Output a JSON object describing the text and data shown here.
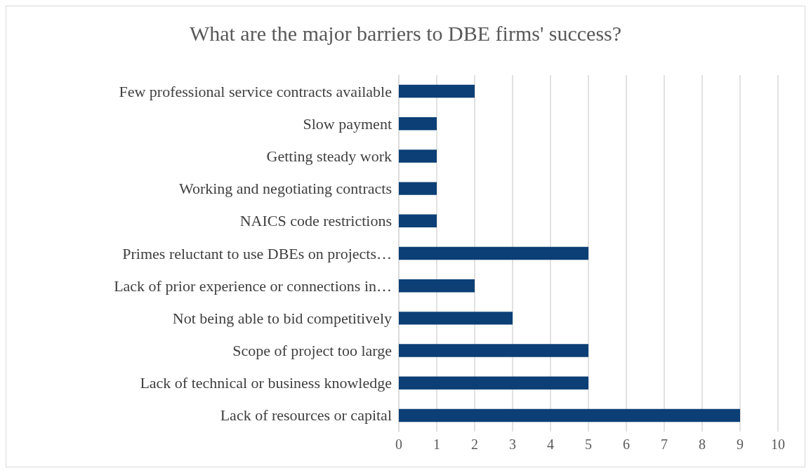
{
  "chart_data": {
    "type": "bar",
    "orientation": "horizontal",
    "title": "What are the major barriers to DBE firms' success?",
    "categories": [
      "Few professional service contracts available",
      "Slow payment",
      "Getting steady work",
      "Working and negotiating contracts",
      "NAICS code restrictions",
      "Primes reluctant to use DBEs on projects…",
      "Lack of prior experience or connections in…",
      "Not being able to bid competitively",
      "Scope of project too large",
      "Lack of technical or business knowledge",
      "Lack of resources or capital"
    ],
    "values": [
      2,
      1,
      1,
      1,
      1,
      5,
      2,
      3,
      5,
      5,
      9
    ],
    "color": "#0b3f75",
    "xlim": [
      0,
      10
    ],
    "xticks": [
      0,
      1,
      2,
      3,
      4,
      5,
      6,
      7,
      8,
      9,
      10
    ],
    "grid": "x"
  }
}
